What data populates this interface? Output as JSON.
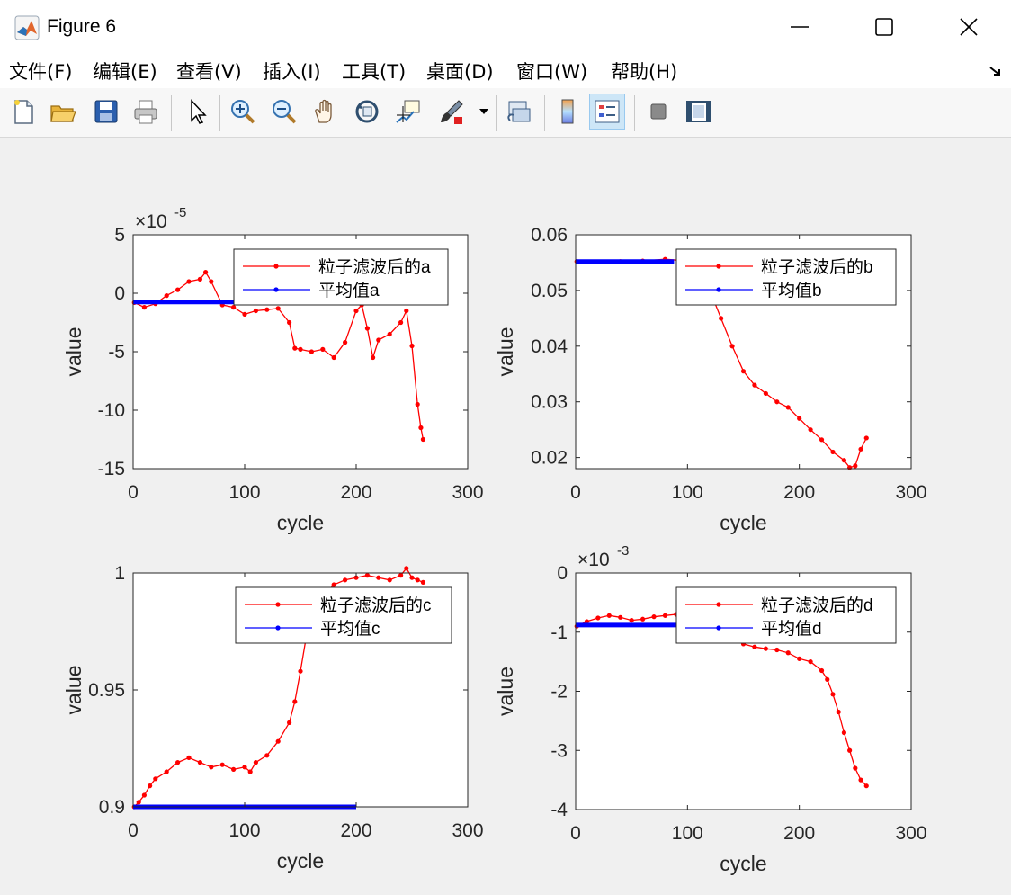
{
  "window": {
    "title": "Figure 6"
  },
  "menu": [
    "文件(F)",
    "编辑(E)",
    "查看(V)",
    "插入(I)",
    "工具(T)",
    "桌面(D)",
    "窗口(W)",
    "帮助(H)"
  ],
  "toolbar": [
    "new-figure-icon",
    "open-file-icon",
    "save-icon",
    "print-icon",
    "pointer-icon",
    "zoom-in-icon",
    "zoom-out-icon",
    "pan-icon",
    "rotate-3d-icon",
    "data-cursor-icon",
    "brush-icon",
    "link-plot-icon",
    "colorbar-icon",
    "legend-icon",
    "hide-plot-tools-icon",
    "show-plot-tools-icon"
  ],
  "colors": {
    "filtered": "#ff0000",
    "mean": "#0000ff"
  },
  "chart_data": [
    {
      "type": "line",
      "xlabel": "cycle",
      "ylabel": "value",
      "xlim": [
        0,
        300
      ],
      "ylim": [
        -15,
        5
      ],
      "xticks": [
        "0",
        "100",
        "200",
        "300"
      ],
      "yticks": [
        "5",
        "0",
        "-5",
        "-10",
        "-15"
      ],
      "exponent": "×10",
      "exponent_power": "-5",
      "legend": {
        "position": "top-right"
      },
      "series": [
        {
          "name": "粒子滤波后的a",
          "color": "#ff0000",
          "x": [
            1,
            10,
            20,
            30,
            40,
            50,
            60,
            65,
            70,
            80,
            90,
            100,
            110,
            120,
            130,
            140,
            145,
            150,
            160,
            170,
            180,
            190,
            200,
            205,
            210,
            215,
            220,
            230,
            240,
            245,
            250,
            255,
            258,
            260
          ],
          "y": [
            -0.8,
            -1.2,
            -0.9,
            -0.2,
            0.3,
            1.0,
            1.2,
            1.8,
            1.0,
            -1.0,
            -1.2,
            -1.8,
            -1.5,
            -1.4,
            -1.3,
            -2.5,
            -4.7,
            -4.8,
            -5.0,
            -4.8,
            -5.5,
            -4.2,
            -1.5,
            -1.0,
            -3.0,
            -5.5,
            -4.0,
            -3.5,
            -2.5,
            -1.5,
            -4.5,
            -9.5,
            -11.5,
            -12.5
          ]
        },
        {
          "name": "平均值a",
          "color": "#0000ff",
          "x": [
            0,
            90
          ],
          "y": [
            -0.75,
            -0.75
          ]
        }
      ]
    },
    {
      "type": "line",
      "xlabel": "cycle",
      "ylabel": "value",
      "xlim": [
        0,
        300
      ],
      "ylim": [
        0.018,
        0.06
      ],
      "xticks": [
        "0",
        "100",
        "200",
        "300"
      ],
      "yticks": [
        "0.06",
        "0.05",
        "0.04",
        "0.03",
        "0.02"
      ],
      "legend": {
        "position": "top-right"
      },
      "series": [
        {
          "name": "粒子滤波后的b",
          "color": "#ff0000",
          "x": [
            1,
            20,
            40,
            60,
            80,
            100,
            110,
            120,
            130,
            140,
            150,
            160,
            170,
            180,
            190,
            200,
            210,
            220,
            230,
            240,
            245,
            250,
            255,
            260
          ],
          "y": [
            0.0552,
            0.0551,
            0.0552,
            0.0553,
            0.0556,
            0.0553,
            0.054,
            0.05,
            0.045,
            0.04,
            0.0355,
            0.033,
            0.0315,
            0.03,
            0.029,
            0.027,
            0.025,
            0.0232,
            0.021,
            0.0195,
            0.0182,
            0.0185,
            0.0215,
            0.0235
          ]
        },
        {
          "name": "平均值b",
          "color": "#0000ff",
          "x": [
            0,
            88
          ],
          "y": [
            0.0552,
            0.0552
          ]
        }
      ]
    },
    {
      "type": "line",
      "xlabel": "cycle",
      "ylabel": "value",
      "xlim": [
        0,
        300
      ],
      "ylim": [
        0.9,
        1.0
      ],
      "xticks": [
        "0",
        "100",
        "200",
        "300"
      ],
      "yticks": [
        "1",
        "0.95",
        "0.9"
      ],
      "legend": {
        "position": "top-right"
      },
      "series": [
        {
          "name": "粒子滤波后的c",
          "color": "#ff0000",
          "x": [
            1,
            5,
            10,
            15,
            20,
            30,
            40,
            50,
            60,
            70,
            80,
            90,
            100,
            105,
            110,
            120,
            130,
            140,
            145,
            150,
            155,
            160,
            170,
            180,
            190,
            200,
            210,
            220,
            230,
            240,
            245,
            250,
            255,
            260
          ],
          "y": [
            0.9,
            0.902,
            0.905,
            0.909,
            0.912,
            0.915,
            0.919,
            0.921,
            0.919,
            0.917,
            0.918,
            0.916,
            0.917,
            0.915,
            0.919,
            0.922,
            0.928,
            0.936,
            0.945,
            0.958,
            0.972,
            0.982,
            0.99,
            0.995,
            0.997,
            0.998,
            0.999,
            0.998,
            0.997,
            0.999,
            1.002,
            0.998,
            0.997,
            0.996
          ]
        },
        {
          "name": "平均值c",
          "color": "#0000ff",
          "x": [
            0,
            200
          ],
          "y": [
            0.9,
            0.9
          ]
        }
      ]
    },
    {
      "type": "line",
      "xlabel": "cycle",
      "ylabel": "value",
      "xlim": [
        0,
        300
      ],
      "ylim": [
        -4,
        0
      ],
      "xticks": [
        "0",
        "100",
        "200",
        "300"
      ],
      "yticks": [
        "0",
        "-1",
        "-2",
        "-3",
        "-4"
      ],
      "exponent": "×10",
      "exponent_power": "-3",
      "legend": {
        "position": "top-right"
      },
      "series": [
        {
          "name": "粒子滤波后的d",
          "color": "#ff0000",
          "x": [
            1,
            10,
            20,
            30,
            40,
            50,
            60,
            70,
            80,
            90,
            100,
            110,
            120,
            130,
            140,
            150,
            160,
            170,
            180,
            190,
            200,
            210,
            220,
            225,
            230,
            235,
            240,
            245,
            250,
            255,
            260
          ],
          "y": [
            -0.9,
            -0.82,
            -0.76,
            -0.72,
            -0.75,
            -0.8,
            -0.78,
            -0.74,
            -0.72,
            -0.7,
            -0.68,
            -0.8,
            -0.92,
            -1.0,
            -1.1,
            -1.2,
            -1.25,
            -1.28,
            -1.3,
            -1.35,
            -1.45,
            -1.5,
            -1.65,
            -1.8,
            -2.05,
            -2.35,
            -2.7,
            -3.0,
            -3.3,
            -3.5,
            -3.6
          ]
        },
        {
          "name": "平均值d",
          "color": "#0000ff",
          "x": [
            0,
            90
          ],
          "y": [
            -0.88,
            -0.88
          ]
        }
      ]
    }
  ]
}
